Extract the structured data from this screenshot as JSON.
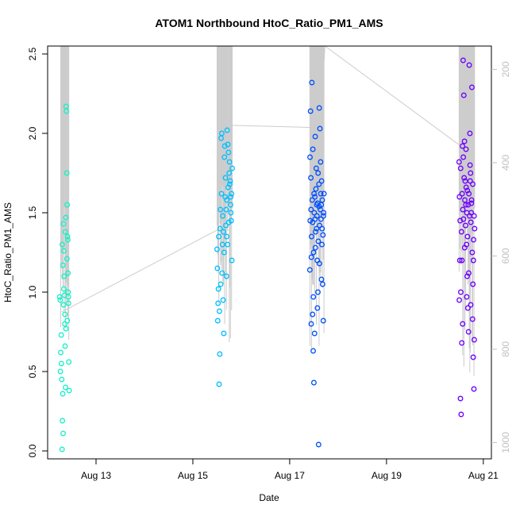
{
  "chart_data": {
    "type": "scatter",
    "title": "ATOM1 Northbound HtoC_Ratio_PM1_AMS",
    "xlabel": "Date",
    "ylabel": "HtoC_Ratio_PM1_AMS",
    "x_unit": "date (August)",
    "xlim": [
      "Aug 12 00:00",
      "Aug 21 04:00"
    ],
    "ylim": [
      -0.05,
      2.55
    ],
    "x_ticks": [
      {
        "value": "Aug 13",
        "label": "Aug 13"
      },
      {
        "value": "Aug 15",
        "label": "Aug 15"
      },
      {
        "value": "Aug 17",
        "label": "Aug 17"
      },
      {
        "value": "Aug 19",
        "label": "Aug 19"
      },
      {
        "value": "Aug 21",
        "label": "Aug 21"
      }
    ],
    "y_ticks": [
      0.0,
      0.5,
      1.0,
      1.5,
      2.0,
      2.5
    ],
    "y_tick_labels": [
      "0.0",
      "0.5",
      "1.0",
      "1.5",
      "2.0",
      "2.5"
    ],
    "secondary_axis": {
      "side": "right",
      "reversed": true,
      "range": [
        150,
        1035
      ],
      "ticks": [
        200,
        400,
        600,
        800,
        1000
      ],
      "tick_labels": [
        "200",
        "400",
        "600",
        "800",
        "1000"
      ],
      "color": "#c0c0c0"
    },
    "secondary_line_color": "#cccccc",
    "grid": false,
    "series": [
      {
        "color": "#19f0c8",
        "points": [
          [
            "Aug 12 06:00",
            0.97
          ],
          [
            "Aug 12 06:15",
            0.95
          ],
          [
            "Aug 12 06:30",
            0.62
          ],
          [
            "Aug 12 06:45",
            0.73
          ],
          [
            "Aug 12 07:00",
            0.45
          ],
          [
            "Aug 12 07:10",
            0.01
          ],
          [
            "Aug 12 07:20",
            0.19
          ],
          [
            "Aug 12 07:30",
            0.36
          ],
          [
            "Aug 12 07:40",
            0.11
          ],
          [
            "Aug 12 07:50",
            1.43
          ],
          [
            "Aug 12 08:00",
            1.26
          ],
          [
            "Aug 12 08:10",
            1.1
          ],
          [
            "Aug 12 08:20",
            0.98
          ],
          [
            "Aug 12 08:30",
            0.8
          ],
          [
            "Aug 12 08:40",
            0.66
          ],
          [
            "Aug 12 08:50",
            0.4
          ],
          [
            "Aug 12 09:00",
            1.47
          ],
          [
            "Aug 12 09:10",
            2.17
          ],
          [
            "Aug 12 09:20",
            2.14
          ],
          [
            "Aug 12 09:30",
            1.75
          ],
          [
            "Aug 12 09:40",
            1.55
          ],
          [
            "Aug 12 09:50",
            1.35
          ],
          [
            "Aug 12 10:00",
            1.33
          ],
          [
            "Aug 12 10:10",
            1.0
          ],
          [
            "Aug 12 10:20",
            0.93
          ],
          [
            "Aug 12 10:30",
            0.56
          ],
          [
            "Aug 12 10:40",
            0.38
          ],
          [
            "Aug 12 07:15",
            1.3
          ],
          [
            "Aug 12 07:35",
            1.17
          ],
          [
            "Aug 12 08:05",
            1.02
          ],
          [
            "Aug 12 08:35",
            0.86
          ],
          [
            "Aug 12 09:05",
            0.77
          ],
          [
            "Aug 12 09:45",
            0.82
          ],
          [
            "Aug 12 10:05",
            1.12
          ],
          [
            "Aug 12 06:20",
            0.5
          ],
          [
            "Aug 12 06:50",
            0.55
          ],
          [
            "Aug 12 08:45",
            1.38
          ],
          [
            "Aug 12 09:35",
            1.21
          ],
          [
            "Aug 12 10:15",
            0.97
          ],
          [
            "Aug 12 07:55",
            0.92
          ]
        ]
      },
      {
        "color": "#00c0ff",
        "points": [
          [
            "Aug 15 12:00",
            1.27
          ],
          [
            "Aug 15 12:20",
            0.82
          ],
          [
            "Aug 15 12:40",
            1.02
          ],
          [
            "Aug 15 13:00",
            0.42
          ],
          [
            "Aug 15 13:20",
            0.61
          ],
          [
            "Aug 15 13:40",
            1.52
          ],
          [
            "Aug 15 14:00",
            1.97
          ],
          [
            "Aug 15 14:20",
            2.0
          ],
          [
            "Aug 15 14:40",
            1.3
          ],
          [
            "Aug 15 15:00",
            0.95
          ],
          [
            "Aug 15 15:20",
            0.74
          ],
          [
            "Aug 15 15:40",
            1.85
          ],
          [
            "Aug 15 16:00",
            1.6
          ],
          [
            "Aug 15 16:20",
            1.42
          ],
          [
            "Aug 15 16:40",
            1.1
          ],
          [
            "Aug 15 17:00",
            2.02
          ],
          [
            "Aug 15 17:20",
            1.93
          ],
          [
            "Aug 15 17:40",
            1.88
          ],
          [
            "Aug 15 18:00",
            1.75
          ],
          [
            "Aug 15 18:20",
            1.68
          ],
          [
            "Aug 15 18:40",
            1.55
          ],
          [
            "Aug 15 19:00",
            1.45
          ],
          [
            "Aug 15 19:20",
            1.2
          ],
          [
            "Aug 15 12:10",
            1.15
          ],
          [
            "Aug 15 12:50",
            1.35
          ],
          [
            "Aug 15 13:30",
            1.4
          ],
          [
            "Aug 15 14:10",
            1.62
          ],
          [
            "Aug 15 14:50",
            1.48
          ],
          [
            "Aug 15 15:30",
            1.25
          ],
          [
            "Aug 15 16:10",
            1.72
          ],
          [
            "Aug 15 16:50",
            1.58
          ],
          [
            "Aug 15 17:30",
            1.66
          ],
          [
            "Aug 15 18:10",
            1.82
          ],
          [
            "Aug 15 18:50",
            1.5
          ],
          [
            "Aug 15 19:10",
            1.62
          ],
          [
            "Aug 15 13:10",
            0.88
          ],
          [
            "Aug 15 13:50",
            1.05
          ],
          [
            "Aug 15 15:10",
            1.38
          ],
          [
            "Aug 15 16:30",
            1.52
          ],
          [
            "Aug 15 17:50",
            1.44
          ],
          [
            "Aug 15 18:30",
            1.7
          ],
          [
            "Aug 15 19:30",
            1.78
          ],
          [
            "Aug 15 14:30",
            1.12
          ],
          [
            "Aug 15 12:30",
            0.93
          ],
          [
            "Aug 15 17:10",
            1.3
          ],
          [
            "Aug 15 15:50",
            1.92
          ],
          [
            "Aug 15 16:45",
            1.35
          ],
          [
            "Aug 15 18:45",
            1.6
          ]
        ]
      },
      {
        "color": "#0050ff",
        "points": [
          [
            "Aug 17 10:00",
            1.14
          ],
          [
            "Aug 17 10:20",
            2.14
          ],
          [
            "Aug 17 10:40",
            0.8
          ],
          [
            "Aug 17 11:00",
            2.32
          ],
          [
            "Aug 17 11:20",
            0.86
          ],
          [
            "Aug 17 11:40",
            0.63
          ],
          [
            "Aug 17 12:00",
            0.43
          ],
          [
            "Aug 17 12:20",
            0.74
          ],
          [
            "Aug 17 12:40",
            1.98
          ],
          [
            "Aug 17 13:00",
            1.65
          ],
          [
            "Aug 17 13:20",
            1.4
          ],
          [
            "Aug 17 13:40",
            1.2
          ],
          [
            "Aug 17 14:00",
            1.0
          ],
          [
            "Aug 17 14:20",
            0.04
          ],
          [
            "Aug 17 14:40",
            2.16
          ],
          [
            "Aug 17 15:00",
            2.03
          ],
          [
            "Aug 17 15:20",
            1.82
          ],
          [
            "Aug 17 15:40",
            1.55
          ],
          [
            "Aug 17 16:00",
            1.3
          ],
          [
            "Aug 17 16:20",
            1.05
          ],
          [
            "Aug 17 16:40",
            0.82
          ],
          [
            "Aug 17 17:00",
            1.62
          ],
          [
            "Aug 17 10:10",
            1.45
          ],
          [
            "Aug 17 10:30",
            1.72
          ],
          [
            "Aug 17 10:50",
            1.35
          ],
          [
            "Aug 17 11:10",
            1.58
          ],
          [
            "Aug 17 11:30",
            1.9
          ],
          [
            "Aug 17 11:50",
            1.25
          ],
          [
            "Aug 17 12:10",
            1.5
          ],
          [
            "Aug 17 12:30",
            1.6
          ],
          [
            "Aug 17 12:50",
            1.38
          ],
          [
            "Aug 17 13:10",
            1.78
          ],
          [
            "Aug 17 13:30",
            1.48
          ],
          [
            "Aug 17 13:50",
            1.56
          ],
          [
            "Aug 17 14:10",
            1.32
          ],
          [
            "Aug 17 14:30",
            1.68
          ],
          [
            "Aug 17 14:50",
            1.42
          ],
          [
            "Aug 17 15:10",
            1.52
          ],
          [
            "Aug 17 15:30",
            1.46
          ],
          [
            "Aug 17 15:50",
            1.7
          ],
          [
            "Aug 17 16:10",
            1.58
          ],
          [
            "Aug 17 16:30",
            1.36
          ],
          [
            "Aug 17 16:50",
            1.5
          ],
          [
            "Aug 17 10:05",
            1.85
          ],
          [
            "Aug 17 10:45",
            1.22
          ],
          [
            "Aug 17 11:25",
            1.44
          ],
          [
            "Aug 17 12:05",
            1.62
          ],
          [
            "Aug 17 12:45",
            1.28
          ],
          [
            "Aug 17 13:25",
            1.55
          ],
          [
            "Aug 17 14:05",
            1.75
          ],
          [
            "Aug 17 14:45",
            1.18
          ],
          [
            "Aug 17 15:25",
            1.62
          ],
          [
            "Aug 17 16:05",
            1.4
          ],
          [
            "Aug 17 16:45",
            1.48
          ],
          [
            "Aug 17 11:45",
            0.97
          ],
          [
            "Aug 17 13:45",
            0.9
          ],
          [
            "Aug 17 15:45",
            1.08
          ],
          [
            "Aug 17 10:35",
            1.52
          ],
          [
            "Aug 17 12:35",
            1.46
          ],
          [
            "Aug 17 14:35",
            1.54
          ]
        ]
      },
      {
        "color": "#6e00ff",
        "points": [
          [
            "Aug 20 12:00",
            1.82
          ],
          [
            "Aug 20 12:20",
            1.2
          ],
          [
            "Aug 20 12:40",
            0.33
          ],
          [
            "Aug 20 13:00",
            0.23
          ],
          [
            "Aug 20 13:20",
            0.68
          ],
          [
            "Aug 20 13:40",
            1.92
          ],
          [
            "Aug 20 14:00",
            2.46
          ],
          [
            "Aug 20 14:20",
            2.24
          ],
          [
            "Aug 20 14:40",
            1.95
          ],
          [
            "Aug 20 15:00",
            1.7
          ],
          [
            "Aug 20 15:20",
            1.55
          ],
          [
            "Aug 20 15:40",
            1.3
          ],
          [
            "Aug 20 16:00",
            1.1
          ],
          [
            "Aug 20 16:20",
            0.9
          ],
          [
            "Aug 20 16:40",
            0.75
          ],
          [
            "Aug 20 17:00",
            2.43
          ],
          [
            "Aug 20 17:20",
            2.0
          ],
          [
            "Aug 20 17:40",
            1.75
          ],
          [
            "Aug 20 18:00",
            1.5
          ],
          [
            "Aug 20 18:20",
            2.29
          ],
          [
            "Aug 20 18:40",
            0.83
          ],
          [
            "Aug 20 19:00",
            0.59
          ],
          [
            "Aug 20 19:20",
            0.39
          ],
          [
            "Aug 20 19:40",
            1.4
          ],
          [
            "Aug 20 12:10",
            1.6
          ],
          [
            "Aug 20 12:30",
            1.45
          ],
          [
            "Aug 20 12:50",
            1.0
          ],
          [
            "Aug 20 13:10",
            1.38
          ],
          [
            "Aug 20 13:30",
            1.62
          ],
          [
            "Aug 20 13:50",
            1.52
          ],
          [
            "Aug 20 14:10",
            1.46
          ],
          [
            "Aug 20 14:30",
            1.72
          ],
          [
            "Aug 20 14:50",
            1.58
          ],
          [
            "Aug 20 15:10",
            1.42
          ],
          [
            "Aug 20 15:30",
            1.66
          ],
          [
            "Aug 20 15:50",
            1.5
          ],
          [
            "Aug 20 16:10",
            1.35
          ],
          [
            "Aug 20 16:30",
            1.55
          ],
          [
            "Aug 20 16:50",
            1.62
          ],
          [
            "Aug 20 17:10",
            1.48
          ],
          [
            "Aug 20 17:30",
            1.7
          ],
          [
            "Aug 20 17:50",
            1.44
          ],
          [
            "Aug 20 18:10",
            1.58
          ],
          [
            "Aug 20 18:30",
            1.25
          ],
          [
            "Aug 20 18:50",
            1.05
          ],
          [
            "Aug 20 19:10",
            1.33
          ],
          [
            "Aug 20 19:30",
            0.7
          ],
          [
            "Aug 20 12:05",
            0.95
          ],
          [
            "Aug 20 12:45",
            1.78
          ],
          [
            "Aug 20 13:25",
            1.2
          ],
          [
            "Aug 20 14:05",
            1.85
          ],
          [
            "Aug 20 14:45",
            1.28
          ],
          [
            "Aug 20 15:25",
            1.9
          ],
          [
            "Aug 20 16:05",
            1.64
          ],
          [
            "Aug 20 16:45",
            1.12
          ],
          [
            "Aug 20 17:25",
            1.8
          ],
          [
            "Aug 20 18:05",
            1.56
          ],
          [
            "Aug 20 18:45",
            1.68
          ],
          [
            "Aug 20 19:25",
            1.48
          ],
          [
            "Aug 20 13:45",
            0.8
          ],
          [
            "Aug 20 15:45",
            0.97
          ],
          [
            "Aug 20 17:45",
            0.92
          ],
          [
            "Aug 20 19:05",
            1.2
          ]
        ]
      }
    ],
    "secondary_series": {
      "segments": [
        {
          "path": [
            [
              "Aug 12 07:00",
              720
            ],
            [
              "Aug 15 14:00",
              540
            ],
            [
              "Aug 15 19:00",
              320
            ],
            [
              "Aug 17 15:00",
              325
            ],
            [
              "Aug 17 17:30",
              150
            ],
            [
              "Aug 20 13:00",
              365
            ],
            [
              "Aug 20 19:40",
              430
            ]
          ]
        }
      ],
      "bursts": [
        {
          "from": "Aug 12 06:30",
          "to": "Aug 12 10:30",
          "min": 150,
          "max": 780
        },
        {
          "from": "Aug 15 12:00",
          "to": "Aug 15 19:30",
          "min": 150,
          "max": 800
        },
        {
          "from": "Aug 17 10:00",
          "to": "Aug 17 17:00",
          "min": 150,
          "max": 820
        },
        {
          "from": "Aug 20 12:00",
          "to": "Aug 20 19:40",
          "min": 150,
          "max": 860
        }
      ]
    }
  }
}
